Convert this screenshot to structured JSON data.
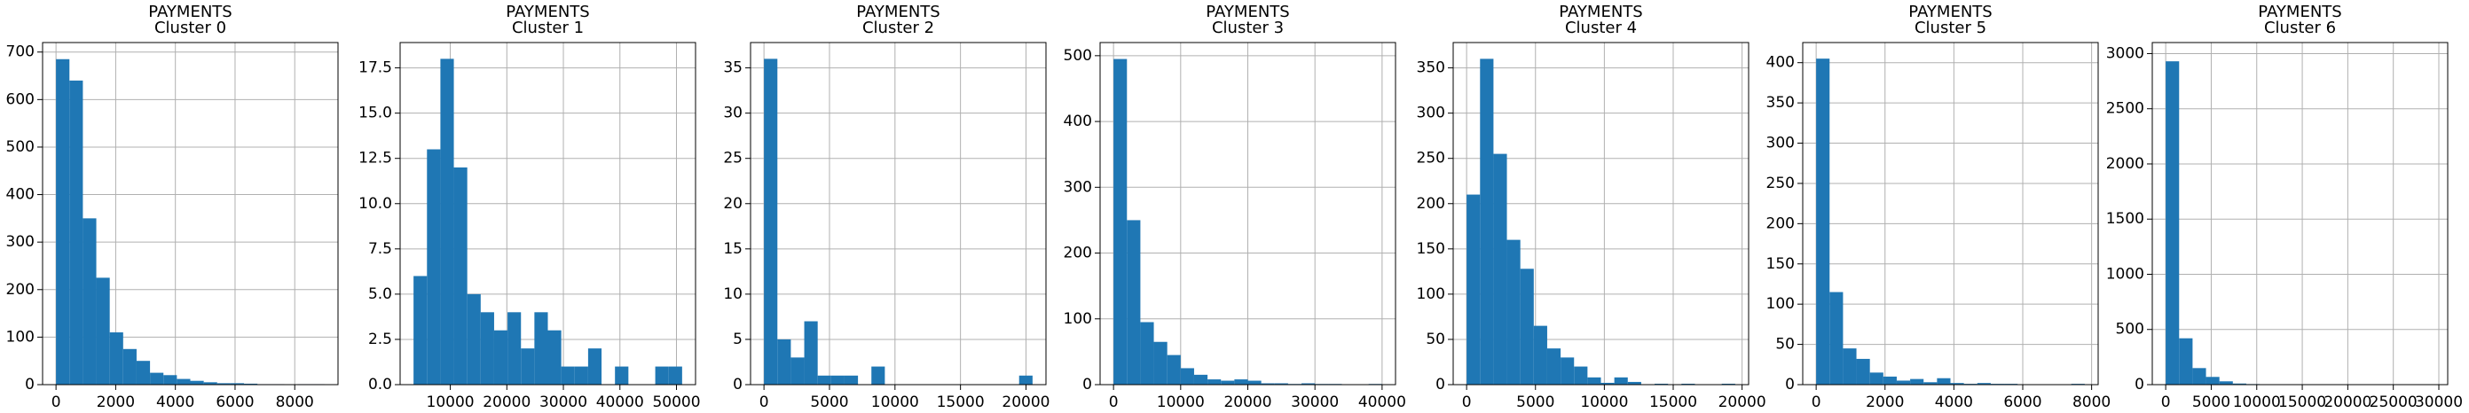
{
  "chart_data": [
    {
      "type": "histogram",
      "title": [
        "PAYMENTS",
        "Cluster 0"
      ],
      "color": "#1f77b4",
      "grid": true,
      "bins": [
        0,
        450,
        900,
        1350,
        1800,
        2250,
        2700,
        3150,
        3600,
        4050,
        4500,
        4950,
        5400,
        5850,
        6300,
        6750,
        7200,
        7650,
        8100,
        8550,
        9000
      ],
      "counts": [
        685,
        640,
        350,
        225,
        110,
        75,
        50,
        25,
        20,
        12,
        8,
        5,
        3,
        3,
        2,
        1,
        1,
        0,
        1,
        1
      ],
      "xlim": [
        -450,
        9450
      ],
      "xticks": [
        0,
        2000,
        4000,
        6000,
        8000
      ],
      "ylim": [
        0,
        720
      ],
      "yticks": [
        0,
        100,
        200,
        300,
        400,
        500,
        600,
        700
      ]
    },
    {
      "type": "histogram",
      "title": [
        "PAYMENTS",
        "Cluster 1"
      ],
      "color": "#1f77b4",
      "grid": true,
      "bins": [
        3500,
        5875,
        8250,
        10625,
        13000,
        15375,
        17750,
        20125,
        22500,
        24875,
        27250,
        29625,
        32000,
        34375,
        36750,
        39125,
        41500,
        43875,
        46250,
        48625,
        51000
      ],
      "counts": [
        6,
        13,
        18,
        12,
        5,
        4,
        3,
        4,
        2,
        4,
        3,
        1,
        1,
        2,
        0,
        1,
        0,
        0,
        1,
        1
      ],
      "xlim": [
        1125,
        53375
      ],
      "xticks": [
        10000,
        20000,
        30000,
        40000,
        50000
      ],
      "ylim": [
        0,
        18.9
      ],
      "yticks": [
        {
          "value": 0,
          "label": "0.0"
        },
        2.5,
        {
          "value": 5,
          "label": "5.0"
        },
        7.5,
        {
          "value": 10,
          "label": "10.0"
        },
        12.5,
        {
          "value": 15,
          "label": "15.0"
        },
        17.5
      ]
    },
    {
      "type": "histogram",
      "title": [
        "PAYMENTS",
        "Cluster 2"
      ],
      "color": "#1f77b4",
      "grid": true,
      "bins": [
        0,
        1025,
        2050,
        3075,
        4100,
        5125,
        6150,
        7175,
        8200,
        9225,
        10250,
        11275,
        12300,
        13325,
        14350,
        15375,
        16400,
        17425,
        18450,
        19475,
        20500
      ],
      "counts": [
        36,
        5,
        3,
        7,
        1,
        1,
        1,
        0,
        2,
        0,
        0,
        0,
        0,
        0,
        0,
        0,
        0,
        0,
        0,
        1
      ],
      "xlim": [
        -1025,
        21525
      ],
      "xticks": [
        0,
        5000,
        10000,
        15000,
        20000
      ],
      "ylim": [
        0,
        37.8
      ],
      "yticks": [
        0,
        5,
        10,
        15,
        20,
        25,
        30,
        35
      ]
    },
    {
      "type": "histogram",
      "title": [
        "PAYMENTS",
        "Cluster 3"
      ],
      "color": "#1f77b4",
      "grid": true,
      "bins": [
        0,
        2000,
        4000,
        6000,
        8000,
        10000,
        12000,
        14000,
        16000,
        18000,
        20000,
        22000,
        24000,
        26000,
        28000,
        30000,
        32000,
        34000,
        36000,
        38000,
        40000
      ],
      "counts": [
        495,
        250,
        95,
        65,
        45,
        25,
        15,
        8,
        6,
        8,
        6,
        2,
        2,
        1,
        2,
        1,
        1,
        0,
        0,
        1
      ],
      "xlim": [
        -2000,
        42000
      ],
      "xticks": [
        0,
        10000,
        20000,
        30000,
        40000
      ],
      "ylim": [
        0,
        520
      ],
      "yticks": [
        0,
        100,
        200,
        300,
        400,
        500
      ]
    },
    {
      "type": "histogram",
      "title": [
        "PAYMENTS",
        "Cluster 4"
      ],
      "color": "#1f77b4",
      "grid": true,
      "bins": [
        0,
        975,
        1950,
        2925,
        3900,
        4875,
        5850,
        6825,
        7800,
        8775,
        9750,
        10725,
        11700,
        12675,
        13650,
        14625,
        15600,
        16575,
        17550,
        18525,
        19500
      ],
      "counts": [
        210,
        360,
        255,
        160,
        128,
        65,
        40,
        30,
        20,
        8,
        2,
        8,
        3,
        0,
        1,
        0,
        1,
        0,
        0,
        1
      ],
      "xlim": [
        -975,
        20475
      ],
      "xticks": [
        0,
        5000,
        10000,
        15000,
        20000
      ],
      "ylim": [
        0,
        378
      ],
      "yticks": [
        0,
        50,
        100,
        150,
        200,
        250,
        300,
        350
      ]
    },
    {
      "type": "histogram",
      "title": [
        "PAYMENTS",
        "Cluster 5"
      ],
      "color": "#1f77b4",
      "grid": true,
      "bins": [
        0,
        390,
        780,
        1170,
        1560,
        1950,
        2340,
        2730,
        3120,
        3510,
        3900,
        4290,
        4680,
        5070,
        5460,
        5850,
        6240,
        6630,
        7020,
        7410,
        7800
      ],
      "counts": [
        405,
        115,
        45,
        32,
        15,
        10,
        5,
        7,
        3,
        8,
        2,
        1,
        2,
        1,
        1,
        0,
        0,
        0,
        0,
        1
      ],
      "xlim": [
        -390,
        8190
      ],
      "xticks": [
        0,
        2000,
        4000,
        6000,
        8000
      ],
      "ylim": [
        0,
        425
      ],
      "yticks": [
        0,
        50,
        100,
        150,
        200,
        250,
        300,
        350,
        400
      ]
    },
    {
      "type": "histogram",
      "title": [
        "PAYMENTS",
        "Cluster 6"
      ],
      "color": "#1f77b4",
      "grid": true,
      "bins": [
        0,
        1475,
        2950,
        4425,
        5900,
        7375,
        8850,
        10325,
        11800,
        13275,
        14750,
        16225,
        17700,
        19175,
        20650,
        22125,
        23600,
        25075,
        26550,
        28025,
        29500
      ],
      "counts": [
        2930,
        420,
        150,
        70,
        30,
        10,
        5,
        3,
        2,
        1,
        1,
        0,
        0,
        0,
        0,
        0,
        0,
        0,
        0,
        1
      ],
      "xlim": [
        -1475,
        30975
      ],
      "xticks": [
        0,
        5000,
        10000,
        15000,
        20000,
        25000,
        30000
      ],
      "ylim": [
        0,
        3100
      ],
      "yticks": [
        0,
        500,
        1000,
        1500,
        2000,
        2500,
        3000
      ]
    }
  ]
}
